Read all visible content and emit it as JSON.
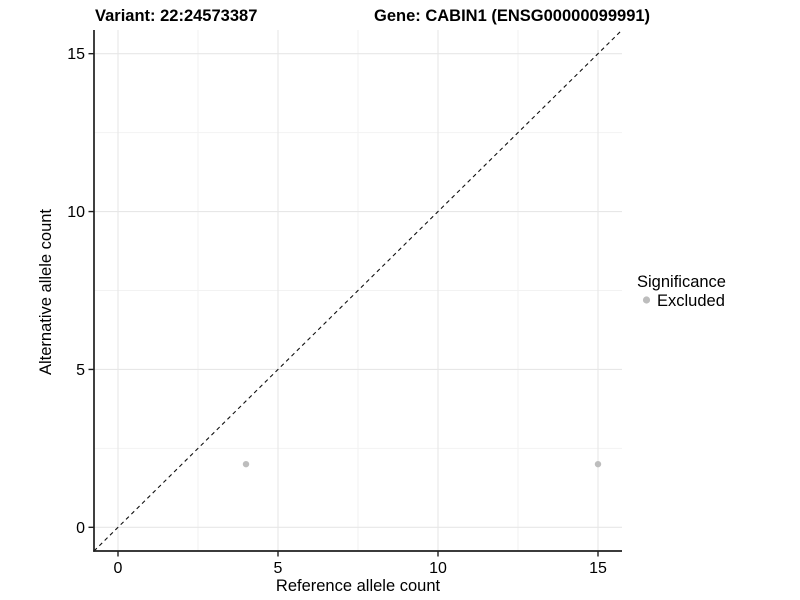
{
  "page": {
    "background": "#ffffff"
  },
  "chart_data": {
    "type": "scatter",
    "titles": {
      "variant": "Variant: 22:24573387",
      "gene": "Gene: CABIN1 (ENSG00000099991)"
    },
    "xlabel": "Reference allele count",
    "ylabel": "Alternative allele count",
    "xlim": [
      -0.75,
      15.75
    ],
    "ylim": [
      -0.75,
      15.75
    ],
    "xticks": [
      0,
      5,
      10,
      15
    ],
    "yticks": [
      0,
      5,
      10,
      15
    ],
    "x_minor_ticks": [
      2.5,
      7.5,
      12.5
    ],
    "y_minor_ticks": [
      2.5,
      7.5,
      12.5
    ],
    "grid": true,
    "reference_line": {
      "kind": "y=x",
      "style": "dashed",
      "color": "#111111"
    },
    "series": [
      {
        "name": "Excluded",
        "color": "#bdbdbd",
        "points": [
          {
            "x": 4,
            "y": 2
          },
          {
            "x": 15,
            "y": 2
          }
        ]
      }
    ],
    "legend": {
      "title": "Significance",
      "position": "right",
      "entries": [
        {
          "label": "Excluded",
          "color": "#bdbdbd"
        }
      ]
    },
    "colors": {
      "axis": "#1f1f1f",
      "grid_major": "#e7e7e7",
      "grid_minor": "#f2f2f2",
      "text": "#000000"
    }
  }
}
